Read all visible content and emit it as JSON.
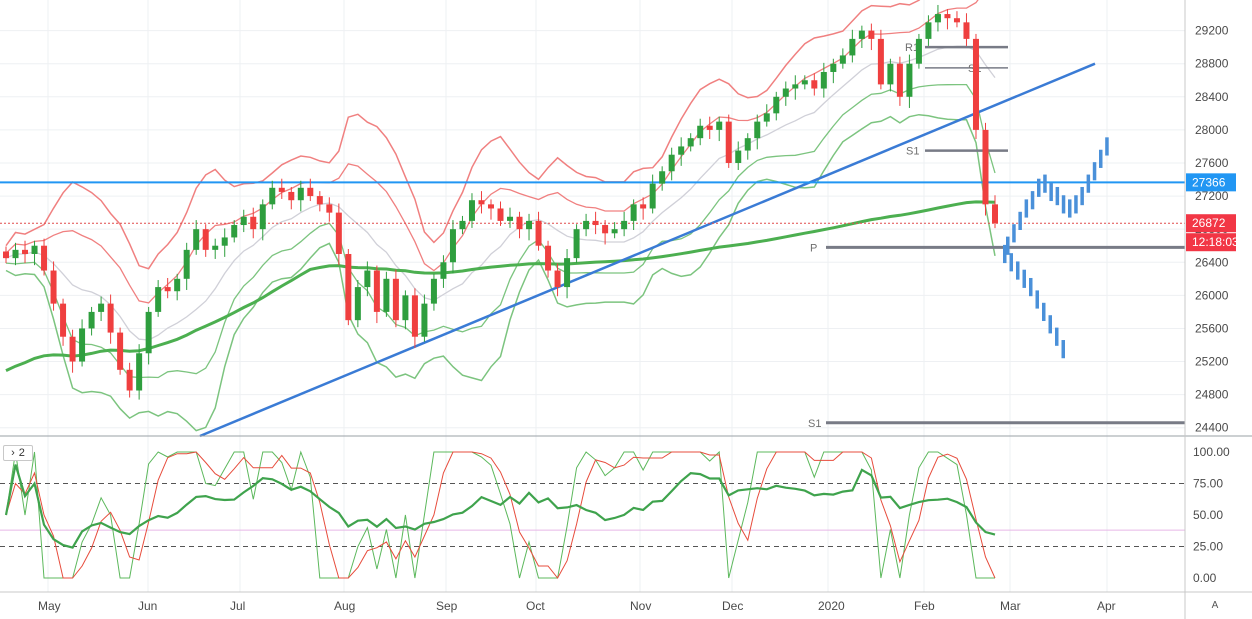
{
  "chart_data": {
    "type": "candlestick",
    "title": "",
    "price_axis": {
      "ticks": [
        29200,
        28800,
        28400,
        28000,
        27600,
        27200,
        26800,
        26400,
        26000,
        25600,
        25200,
        24800,
        24400
      ],
      "range": [
        24300,
        29570
      ]
    },
    "time_axis": {
      "labels": [
        "May",
        "Jun",
        "Jul",
        "Aug",
        "Sep",
        "Oct",
        "Nov",
        "Dec",
        "2020",
        "Feb",
        "Mar",
        "Apr"
      ]
    },
    "series": [
      {
        "kind": "ohlc",
        "values": [
          {
            "month": "May",
            "close": 26450
          },
          {
            "month": "May",
            "close": 26550
          },
          {
            "month": "May",
            "close": 26500
          },
          {
            "month": "May",
            "close": 26600
          },
          {
            "month": "May",
            "close": 26300
          },
          {
            "month": "May",
            "close": 25900
          },
          {
            "month": "May",
            "close": 25500
          },
          {
            "month": "May",
            "close": 25200
          },
          {
            "month": "May",
            "close": 25600
          },
          {
            "month": "May",
            "close": 25800
          },
          {
            "month": "May",
            "close": 25900
          },
          {
            "month": "May",
            "close": 25550
          },
          {
            "month": "Jun",
            "close": 25100
          },
          {
            "month": "Jun",
            "close": 24850
          },
          {
            "month": "Jun",
            "close": 25300
          },
          {
            "month": "Jun",
            "close": 25800
          },
          {
            "month": "Jun",
            "close": 26100
          },
          {
            "month": "Jun",
            "close": 26050
          },
          {
            "month": "Jun",
            "close": 26200
          },
          {
            "month": "Jun",
            "close": 26550
          },
          {
            "month": "Jun",
            "close": 26800
          },
          {
            "month": "Jun",
            "close": 26550
          },
          {
            "month": "Jun",
            "close": 26600
          },
          {
            "month": "Jun",
            "close": 26700
          },
          {
            "month": "Jul",
            "close": 26850
          },
          {
            "month": "Jul",
            "close": 26950
          },
          {
            "month": "Jul",
            "close": 26800
          },
          {
            "month": "Jul",
            "close": 27100
          },
          {
            "month": "Jul",
            "close": 27300
          },
          {
            "month": "Jul",
            "close": 27250
          },
          {
            "month": "Jul",
            "close": 27150
          },
          {
            "month": "Jul",
            "close": 27300
          },
          {
            "month": "Jul",
            "close": 27200
          },
          {
            "month": "Jul",
            "close": 27100
          },
          {
            "month": "Jul",
            "close": 27000
          },
          {
            "month": "Aug",
            "close": 26500
          },
          {
            "month": "Aug",
            "close": 25700
          },
          {
            "month": "Aug",
            "close": 26100
          },
          {
            "month": "Aug",
            "close": 26300
          },
          {
            "month": "Aug",
            "close": 25800
          },
          {
            "month": "Aug",
            "close": 26200
          },
          {
            "month": "Aug",
            "close": 25700
          },
          {
            "month": "Aug",
            "close": 26000
          },
          {
            "month": "Aug",
            "close": 25500
          },
          {
            "month": "Aug",
            "close": 25900
          },
          {
            "month": "Aug",
            "close": 26200
          },
          {
            "month": "Sep",
            "close": 26400
          },
          {
            "month": "Sep",
            "close": 26800
          },
          {
            "month": "Sep",
            "close": 26900
          },
          {
            "month": "Sep",
            "close": 27150
          },
          {
            "month": "Sep",
            "close": 27100
          },
          {
            "month": "Sep",
            "close": 27050
          },
          {
            "month": "Sep",
            "close": 26900
          },
          {
            "month": "Sep",
            "close": 26950
          },
          {
            "month": "Sep",
            "close": 26800
          },
          {
            "month": "Sep",
            "close": 26900
          },
          {
            "month": "Oct",
            "close": 26600
          },
          {
            "month": "Oct",
            "close": 26300
          },
          {
            "month": "Oct",
            "close": 26100
          },
          {
            "month": "Oct",
            "close": 26450
          },
          {
            "month": "Oct",
            "close": 26800
          },
          {
            "month": "Oct",
            "close": 26900
          },
          {
            "month": "Oct",
            "close": 26850
          },
          {
            "month": "Oct",
            "close": 26750
          },
          {
            "month": "Oct",
            "close": 26800
          },
          {
            "month": "Oct",
            "close": 26900
          },
          {
            "month": "Oct",
            "close": 27100
          },
          {
            "month": "Oct",
            "close": 27050
          },
          {
            "month": "Nov",
            "close": 27350
          },
          {
            "month": "Nov",
            "close": 27500
          },
          {
            "month": "Nov",
            "close": 27700
          },
          {
            "month": "Nov",
            "close": 27800
          },
          {
            "month": "Nov",
            "close": 27900
          },
          {
            "month": "Nov",
            "close": 28050
          },
          {
            "month": "Nov",
            "close": 28000
          },
          {
            "month": "Nov",
            "close": 28100
          },
          {
            "month": "Dec",
            "close": 27600
          },
          {
            "month": "Dec",
            "close": 27750
          },
          {
            "month": "Dec",
            "close": 27900
          },
          {
            "month": "Dec",
            "close": 28100
          },
          {
            "month": "Dec",
            "close": 28200
          },
          {
            "month": "Dec",
            "close": 28400
          },
          {
            "month": "Dec",
            "close": 28500
          },
          {
            "month": "Dec",
            "close": 28550
          },
          {
            "month": "Dec",
            "close": 28600
          },
          {
            "month": "Dec",
            "close": 28500
          },
          {
            "month": "2020",
            "close": 28700
          },
          {
            "month": "2020",
            "close": 28800
          },
          {
            "month": "2020",
            "close": 28900
          },
          {
            "month": "2020",
            "close": 29100
          },
          {
            "month": "2020",
            "close": 29200
          },
          {
            "month": "2020",
            "close": 29100
          },
          {
            "month": "2020",
            "close": 28550
          },
          {
            "month": "2020",
            "close": 28800
          },
          {
            "month": "Feb",
            "close": 28400
          },
          {
            "month": "Feb",
            "close": 28800
          },
          {
            "month": "Feb",
            "close": 29100
          },
          {
            "month": "Feb",
            "close": 29300
          },
          {
            "month": "Feb",
            "close": 29400
          },
          {
            "month": "Feb",
            "close": 29350
          },
          {
            "month": "Feb",
            "close": 29300
          },
          {
            "month": "Feb",
            "close": 29100
          },
          {
            "month": "Feb",
            "close": 28000
          },
          {
            "month": "Feb",
            "close": 27100
          },
          {
            "month": "Feb",
            "close": 26872
          }
        ]
      },
      {
        "kind": "projection",
        "values": [
          26500,
          26400,
          26300,
          26200,
          26100,
          25950,
          25800,
          25650,
          25500,
          25350,
          26600,
          26750,
          26900,
          27050,
          27150,
          27300,
          27350,
          27250,
          27200,
          27100,
          27050,
          27100,
          27200,
          27350,
          27500,
          27650,
          27800
        ]
      }
    ],
    "horizontal_levels": [
      {
        "label": "",
        "price": 27366,
        "color": "#2196f3"
      },
      {
        "label": "P",
        "price": 26580,
        "color": "#787b86"
      },
      {
        "label": "S1",
        "price": 24460,
        "color": "#787b86"
      },
      {
        "label": "R1",
        "price": 29000,
        "color": "#787b86"
      },
      {
        "label": "S1",
        "price": 28750,
        "color": "#787b86"
      },
      {
        "label": "S1",
        "price": 27750,
        "color": "#787b86"
      }
    ],
    "price_tags": [
      {
        "text": "27366",
        "color": "#2196f3"
      },
      {
        "text": "26872",
        "color": "#f23645"
      },
      {
        "text": "12:18:03",
        "color": "#f23645"
      }
    ],
    "oscillator": {
      "pane_label": "2",
      "ticks": [
        "100.00",
        "75.00",
        "50.00",
        "25.00",
        "0.00"
      ],
      "range": [
        0,
        100
      ],
      "levels": [
        75,
        25,
        38
      ]
    },
    "colors": {
      "up": "#26a69a",
      "up_body": "#2e9e3e",
      "down": "#ef3f3f",
      "bollinger": "#f08080",
      "ma": "#4caf50",
      "trendline": "#3a7bd5"
    }
  },
  "ui": {
    "pane_toggle": "2",
    "auto_scale": "A"
  }
}
